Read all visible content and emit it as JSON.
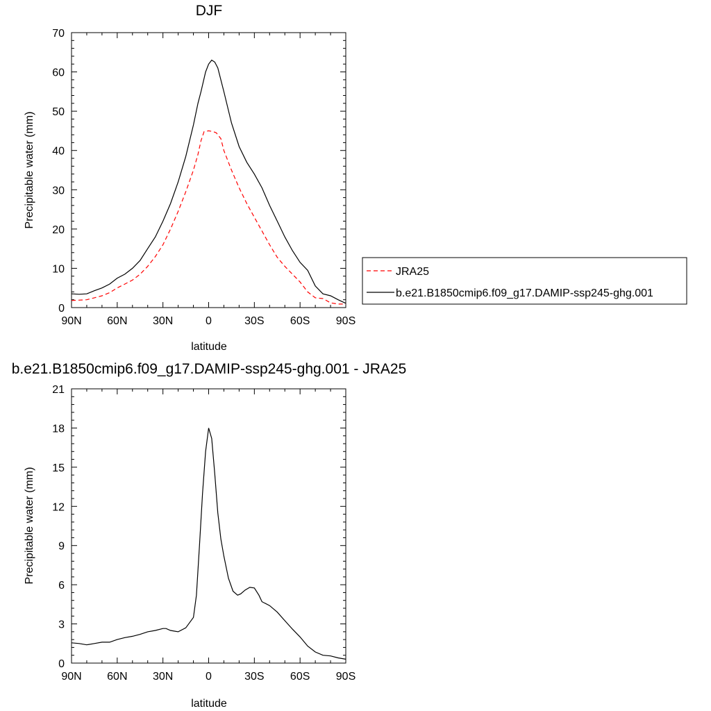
{
  "colors": {
    "background": "#ffffff",
    "axis": "#000000",
    "model_line": "#000000",
    "obs_line": "#ff0000"
  },
  "chart_data": [
    {
      "type": "line",
      "title": "DJF",
      "xlabel": "latitude",
      "ylabel": "Precipitable water (mm)",
      "x_ticks": [
        {
          "value": -90,
          "label": "90N"
        },
        {
          "value": -60,
          "label": "60N"
        },
        {
          "value": -30,
          "label": "30N"
        },
        {
          "value": 0,
          "label": "0"
        },
        {
          "value": 30,
          "label": "30S"
        },
        {
          "value": 60,
          "label": "60S"
        },
        {
          "value": 90,
          "label": "90S"
        }
      ],
      "xlim": [
        -90,
        90
      ],
      "ylim": [
        0,
        70
      ],
      "y_ticks": [
        0,
        10,
        20,
        30,
        40,
        50,
        60,
        70
      ],
      "legend": {
        "placement": "right"
      },
      "series": [
        {
          "name": "JRA25",
          "color": "#ff0000",
          "dash": "dashed",
          "x": [
            -90,
            -80,
            -75,
            -70,
            -65,
            -60,
            -55,
            -50,
            -45,
            -40,
            -35,
            -30,
            -25,
            -20,
            -15,
            -10,
            -7,
            -5,
            -3,
            0,
            3,
            5,
            8,
            10,
            15,
            20,
            25,
            30,
            35,
            40,
            45,
            50,
            55,
            60,
            65,
            70,
            75,
            80,
            85,
            90
          ],
          "y": [
            1.8,
            2.0,
            2.5,
            3.0,
            3.8,
            5.0,
            6.0,
            7.0,
            8.5,
            10.5,
            13.0,
            16.0,
            20.0,
            24.5,
            29.5,
            35.0,
            39.0,
            42.5,
            44.8,
            45.0,
            44.8,
            44.5,
            43.0,
            40.0,
            35.0,
            30.5,
            26.5,
            23.0,
            19.5,
            16.0,
            12.8,
            10.5,
            8.5,
            6.5,
            4.0,
            2.5,
            2.3,
            1.2,
            0.9,
            0.9
          ]
        },
        {
          "name": "b.e21.B1850cmip6.f09_g17.DAMIP-ssp245-ghg.001",
          "color": "#000000",
          "dash": "solid",
          "x": [
            -90,
            -85,
            -80,
            -75,
            -70,
            -65,
            -60,
            -55,
            -50,
            -45,
            -40,
            -35,
            -30,
            -25,
            -20,
            -15,
            -10,
            -7,
            -5,
            -2,
            0,
            2,
            4,
            6,
            10,
            15,
            20,
            25,
            30,
            35,
            40,
            45,
            50,
            55,
            60,
            65,
            70,
            75,
            80,
            85,
            90
          ],
          "y": [
            3.5,
            3.4,
            3.5,
            4.3,
            5.0,
            6.0,
            7.5,
            8.5,
            10.0,
            12.0,
            15.0,
            18.0,
            22.0,
            26.5,
            32.0,
            38.5,
            46.5,
            52.0,
            55.0,
            60.0,
            62.0,
            63.0,
            62.5,
            61.0,
            55.0,
            47.0,
            41.0,
            37.0,
            34.0,
            30.5,
            26.0,
            22.0,
            18.0,
            14.5,
            11.5,
            9.5,
            5.5,
            3.5,
            3.0,
            2.0,
            1.1
          ]
        }
      ]
    },
    {
      "type": "line",
      "title": "b.e21.B1850cmip6.f09_g17.DAMIP-ssp245-ghg.001 - JRA25",
      "xlabel": "latitude",
      "ylabel": "Precipitable water (mm)",
      "x_ticks": [
        {
          "value": -90,
          "label": "90N"
        },
        {
          "value": -60,
          "label": "60N"
        },
        {
          "value": -30,
          "label": "30N"
        },
        {
          "value": 0,
          "label": "0"
        },
        {
          "value": 30,
          "label": "30S"
        },
        {
          "value": 60,
          "label": "60S"
        },
        {
          "value": 90,
          "label": "90S"
        }
      ],
      "xlim": [
        -90,
        90
      ],
      "ylim": [
        0,
        21
      ],
      "y_ticks": [
        0,
        3,
        6,
        9,
        12,
        15,
        18,
        21
      ],
      "series": [
        {
          "color": "#000000",
          "dash": "solid",
          "x": [
            -90,
            -85,
            -80,
            -75,
            -70,
            -65,
            -60,
            -55,
            -50,
            -45,
            -40,
            -35,
            -30,
            -28,
            -25,
            -20,
            -15,
            -10,
            -8,
            -6,
            -4,
            -2,
            0,
            2,
            4,
            6,
            8,
            10,
            13,
            16,
            19,
            21,
            24,
            27,
            30,
            33,
            35,
            40,
            45,
            50,
            55,
            60,
            65,
            70,
            75,
            80,
            85,
            90
          ],
          "y": [
            1.55,
            1.5,
            1.4,
            1.5,
            1.6,
            1.6,
            1.8,
            1.95,
            2.05,
            2.2,
            2.4,
            2.5,
            2.65,
            2.65,
            2.5,
            2.4,
            2.7,
            3.5,
            5.2,
            9.0,
            13.0,
            16.2,
            18.0,
            17.2,
            14.5,
            11.5,
            9.5,
            8.2,
            6.5,
            5.5,
            5.2,
            5.3,
            5.6,
            5.8,
            5.75,
            5.2,
            4.7,
            4.4,
            3.9,
            3.25,
            2.6,
            2.0,
            1.3,
            0.85,
            0.6,
            0.55,
            0.4,
            0.3
          ]
        }
      ]
    }
  ]
}
